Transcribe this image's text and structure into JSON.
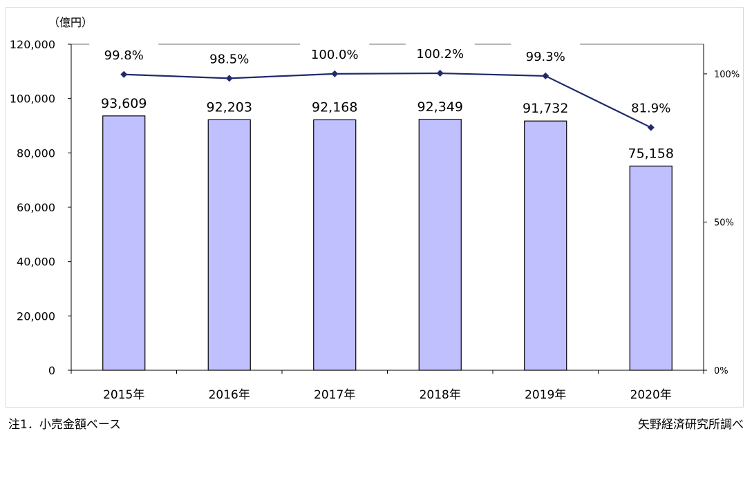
{
  "chart_data": {
    "type": "bar",
    "categories": [
      "2015年",
      "2016年",
      "2017年",
      "2018年",
      "2019年",
      "2020年"
    ],
    "series": [
      {
        "values": [
          93609,
          92203,
          92168,
          92349,
          91732,
          75158
        ],
        "labels": [
          "93,609",
          "92,203",
          "92,168",
          "92,349",
          "91,732",
          "75,158"
        ],
        "color": "#c0c0ff",
        "axis": "left",
        "type": "bar"
      },
      {
        "values": [
          99.8,
          98.5,
          100.0,
          100.2,
          99.3,
          81.9
        ],
        "labels": [
          "99.8%",
          "98.5%",
          "100.0%",
          "100.2%",
          "99.3%",
          "81.9%"
        ],
        "color": "#1f2a6b",
        "axis": "right",
        "type": "line"
      }
    ],
    "ylabel": "（億円）",
    "ylim": [
      0,
      120000
    ],
    "yticks": [
      "0",
      "20,000",
      "40,000",
      "60,000",
      "80,000",
      "100,000",
      "120,000"
    ],
    "y2lim": [
      0,
      110
    ],
    "y2ticks": [
      {
        "value": 0,
        "label": "0%"
      },
      {
        "value": 50,
        "label": "50%"
      },
      {
        "value": 100,
        "label": "100%"
      }
    ],
    "grid": false
  },
  "notes": {
    "left": "注1．小売金額ベース",
    "right": "矢野経済研究所調べ"
  }
}
